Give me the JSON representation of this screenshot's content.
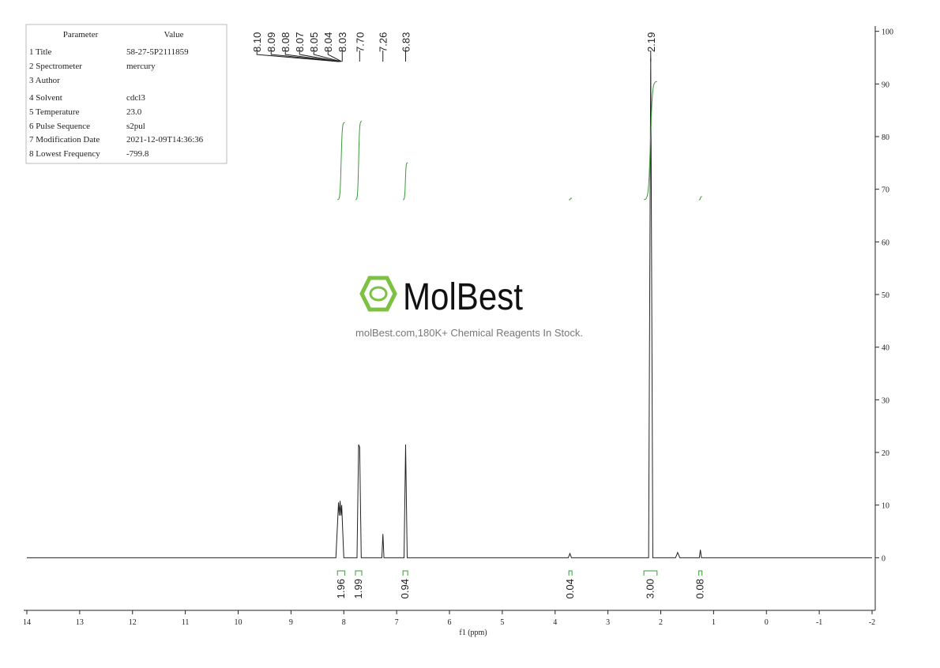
{
  "chart_data": {
    "type": "nmr",
    "x_label": "f1 (ppm)",
    "xlim": [
      14,
      -2
    ],
    "xticks": [
      14,
      13,
      12,
      11,
      10,
      9,
      8,
      7,
      6,
      5,
      4,
      3,
      2,
      1,
      0,
      -1,
      -2
    ],
    "ylim": [
      -10,
      101
    ],
    "yticks": [
      0,
      10,
      20,
      30,
      40,
      50,
      60,
      70,
      80,
      90,
      100
    ],
    "color": "#222222",
    "integral_color": "#3a9a3a",
    "x": [
      14,
      8.15,
      8.1,
      8.085,
      8.07,
      8.055,
      8.04,
      8,
      7.75,
      7.72,
      7.7,
      7.67,
      7.28,
      7.26,
      7.24,
      6.86,
      6.83,
      6.8,
      3.75,
      3.72,
      3.69,
      2.23,
      2.19,
      2.15,
      1.72,
      1.68,
      1.64,
      1.27,
      1.25,
      1.23,
      -2
    ],
    "values": [
      0,
      0,
      10.5,
      8,
      10.8,
      8,
      10,
      0,
      0,
      21.5,
      21,
      0,
      0,
      4.5,
      0,
      0,
      21.5,
      0,
      0,
      0.8,
      0,
      0,
      95,
      0,
      0,
      1,
      0,
      0,
      1.5,
      0,
      0
    ],
    "peak_labels": [
      {
        "value": 8.1,
        "label": "8.10"
      },
      {
        "value": 8.09,
        "label": "8.09"
      },
      {
        "value": 8.08,
        "label": "8.08"
      },
      {
        "value": 8.07,
        "label": "8.07"
      },
      {
        "value": 8.05,
        "label": "8.05"
      },
      {
        "value": 8.04,
        "label": "8.04"
      },
      {
        "value": 8.03,
        "label": "8.03"
      },
      {
        "value": 7.7,
        "label": "7.70"
      },
      {
        "value": 7.26,
        "label": "7.26"
      },
      {
        "value": 6.83,
        "label": "6.83"
      },
      {
        "value": 2.19,
        "label": "2.19"
      }
    ],
    "integrals": {
      "ranges": [
        [
          8.12,
          7.98
        ],
        [
          7.78,
          7.66
        ],
        [
          6.88,
          6.79
        ],
        [
          3.74,
          3.68
        ],
        [
          2.32,
          2.07
        ],
        [
          1.28,
          1.22
        ]
      ],
      "values": [
        1.96,
        1.99,
        0.94,
        0.04,
        3,
        0.08
      ],
      "value_labels": [
        "1.96",
        "1.99",
        "0.94",
        "0.04",
        "3.00",
        "0.08"
      ]
    },
    "parameters": {
      "header": [
        "Parameter",
        "Value"
      ],
      "rows": [
        [
          "1 Title",
          "58-27-5P2111859"
        ],
        [
          "2 Spectrometer",
          "mercury"
        ],
        [
          "3 Author",
          ""
        ],
        [
          "4 Solvent",
          "cdcl3"
        ],
        [
          "5 Temperature",
          "23.0"
        ],
        [
          "6 Pulse Sequence",
          "s2pul"
        ],
        [
          "7 Modification Date",
          "2021-12-09T14:36:36"
        ],
        [
          "8 Lowest Frequency",
          "-799.8"
        ]
      ]
    },
    "watermark": {
      "brand": "MolBest",
      "tagline": "molBest.com,180K+ Chemical Reagents In Stock."
    }
  }
}
